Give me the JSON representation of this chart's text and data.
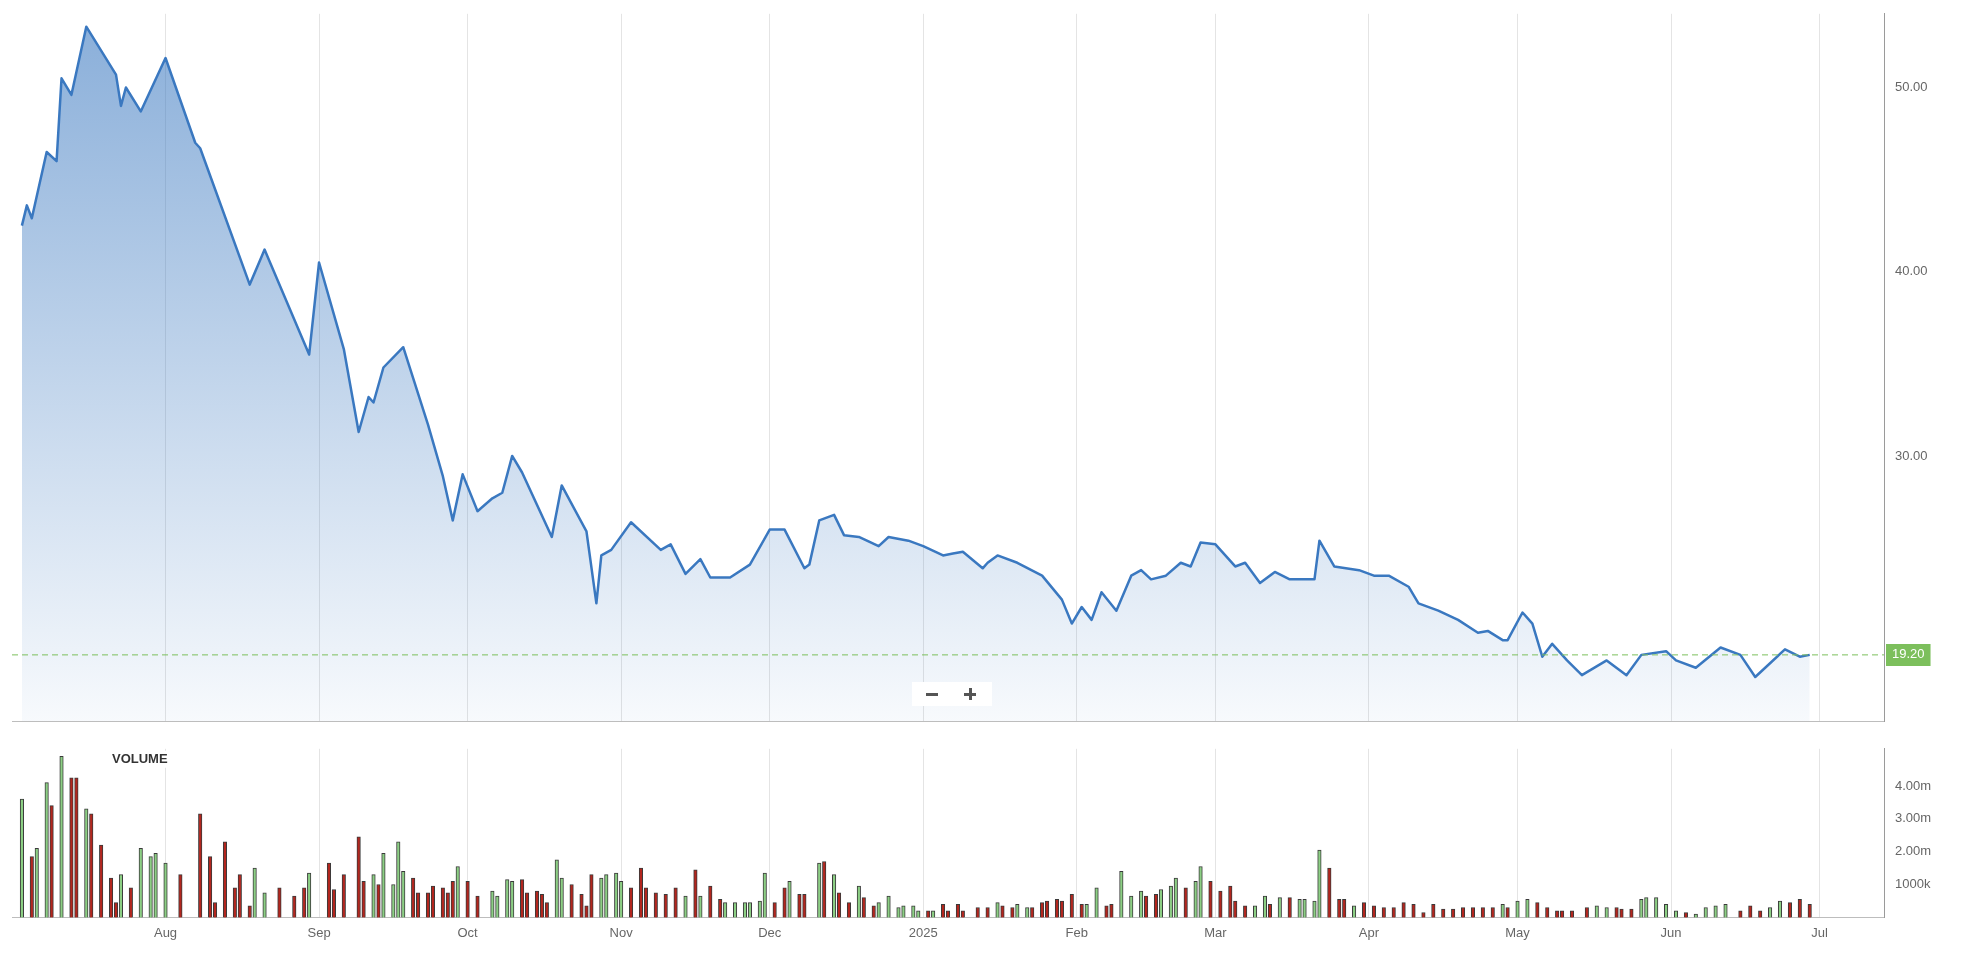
{
  "chart_data": [
    {
      "type": "area",
      "xlim": [
        "2024-07-01",
        "2025-07-14"
      ],
      "xticks": [
        {
          "value": "2024-08-01",
          "label": null
        },
        {
          "value": "2024-09-01",
          "label": null
        },
        {
          "value": "2024-10-01",
          "label": null
        },
        {
          "value": "2024-11-01",
          "label": null
        },
        {
          "value": "2024-12-01",
          "label": null
        },
        {
          "value": "2025-01-01",
          "label": null
        },
        {
          "value": "2025-02-01",
          "label": null
        },
        {
          "value": "2025-03-01",
          "label": null
        },
        {
          "value": "2025-04-01",
          "label": null
        },
        {
          "value": "2025-05-01",
          "label": null
        },
        {
          "value": "2025-06-01",
          "label": null
        },
        {
          "value": "2025-07-01",
          "label": null
        }
      ],
      "ylim": [
        15.6,
        54
      ],
      "yticks": [
        {
          "value": 30,
          "label": "30.00"
        },
        {
          "value": 40,
          "label": "40.00"
        },
        {
          "value": 50,
          "label": "50.00"
        }
      ],
      "tick_labels": "y",
      "grid": "x",
      "legend": false,
      "marker": "none",
      "ref_lines": [
        {
          "axis": "y",
          "value": 19.2,
          "label": "19.20",
          "color": "#7cbf5c",
          "line_style": "dashed"
        }
      ],
      "series": [
        {
          "color": "#3a78c0",
          "x": [
            "2024-07-03",
            "2024-07-04",
            "2024-07-05",
            "2024-07-08",
            "2024-07-10",
            "2024-07-11",
            "2024-07-13",
            "2024-07-16",
            "2024-07-22",
            "2024-07-23",
            "2024-07-24",
            "2024-07-27",
            "2024-08-01",
            "2024-08-07",
            "2024-08-08",
            "2024-08-18",
            "2024-08-21",
            "2024-08-30",
            "2024-09-01",
            "2024-09-06",
            "2024-09-09",
            "2024-09-11",
            "2024-09-12",
            "2024-09-14",
            "2024-09-18",
            "2024-09-23",
            "2024-09-26",
            "2024-09-28",
            "2024-09-30",
            "2024-10-03",
            "2024-10-06",
            "2024-10-08",
            "2024-10-10",
            "2024-10-12",
            "2024-10-18",
            "2024-10-20",
            "2024-10-25",
            "2024-10-27",
            "2024-10-28",
            "2024-10-30",
            "2024-11-03",
            "2024-11-09",
            "2024-11-11",
            "2024-11-14",
            "2024-11-17",
            "2024-11-19",
            "2024-11-23",
            "2024-11-27",
            "2024-12-01",
            "2024-12-04",
            "2024-12-08",
            "2024-12-09",
            "2024-12-11",
            "2024-12-14",
            "2024-12-16",
            "2024-12-19",
            "2024-12-23",
            "2024-12-25",
            "2024-12-29",
            "2025-01-01",
            "2025-01-05",
            "2025-01-07",
            "2025-01-09",
            "2025-01-13",
            "2025-01-14",
            "2025-01-16",
            "2025-01-20",
            "2025-01-25",
            "2025-01-29",
            "2025-01-31",
            "2025-02-02",
            "2025-02-04",
            "2025-02-06",
            "2025-02-09",
            "2025-02-12",
            "2025-02-14",
            "2025-02-16",
            "2025-02-19",
            "2025-02-22",
            "2025-02-24",
            "2025-02-26",
            "2025-03-01",
            "2025-03-05",
            "2025-03-07",
            "2025-03-10",
            "2025-03-13",
            "2025-03-16",
            "2025-03-21",
            "2025-03-22",
            "2025-03-25",
            "2025-03-30",
            "2025-04-02",
            "2025-04-05",
            "2025-04-09",
            "2025-04-11",
            "2025-04-15",
            "2025-04-19",
            "2025-04-23",
            "2025-04-25",
            "2025-04-28",
            "2025-04-29",
            "2025-05-02",
            "2025-05-04",
            "2025-05-06",
            "2025-05-08",
            "2025-05-11",
            "2025-05-14",
            "2025-05-19",
            "2025-05-23",
            "2025-05-26",
            "2025-05-31",
            "2025-06-02",
            "2025-06-06",
            "2025-06-11",
            "2025-06-15",
            "2025-06-18",
            "2025-06-24",
            "2025-06-27",
            "2025-06-29"
          ],
          "values": [
            42.5,
            43.6,
            42.9,
            46.5,
            46.0,
            50.5,
            49.6,
            53.3,
            50.7,
            49.0,
            50.0,
            48.7,
            51.6,
            47.0,
            46.7,
            39.3,
            41.2,
            35.5,
            40.5,
            35.8,
            31.3,
            33.2,
            32.9,
            34.8,
            35.9,
            31.7,
            28.9,
            26.5,
            29.0,
            27.0,
            27.7,
            28.0,
            30.0,
            29.1,
            25.6,
            28.4,
            25.9,
            22.0,
            24.6,
            24.9,
            26.4,
            24.9,
            25.2,
            23.6,
            24.4,
            23.4,
            23.4,
            24.1,
            26.0,
            26.0,
            23.9,
            24.1,
            26.5,
            26.8,
            25.7,
            25.6,
            25.1,
            25.6,
            25.4,
            25.1,
            24.6,
            24.7,
            24.8,
            23.9,
            24.2,
            24.6,
            24.2,
            23.5,
            22.2,
            20.9,
            21.8,
            21.1,
            22.6,
            21.6,
            23.5,
            23.8,
            23.3,
            23.5,
            24.2,
            24.0,
            25.3,
            25.2,
            24.0,
            24.2,
            23.1,
            23.7,
            23.3,
            23.3,
            25.4,
            24.0,
            23.8,
            23.5,
            23.5,
            22.9,
            22.0,
            21.6,
            21.1,
            20.4,
            20.5,
            20.0,
            20.0,
            21.5,
            20.9,
            19.1,
            19.8,
            18.9,
            18.1,
            18.9,
            18.1,
            19.2,
            19.4,
            18.9,
            18.5,
            19.6,
            19.2,
            18.0,
            19.5,
            19.1,
            19.2
          ]
        }
      ]
    },
    {
      "type": "bar",
      "xlim": [
        "2024-07-01",
        "2025-07-14"
      ],
      "xticks": [
        {
          "value": "2024-08-01",
          "label": "Aug"
        },
        {
          "value": "2024-09-01",
          "label": "Sep"
        },
        {
          "value": "2024-10-01",
          "label": "Oct"
        },
        {
          "value": "2024-11-01",
          "label": "Nov"
        },
        {
          "value": "2024-12-01",
          "label": "Dec"
        },
        {
          "value": "2025-01-01",
          "label": "2025"
        },
        {
          "value": "2025-02-01",
          "label": "Feb"
        },
        {
          "value": "2025-03-01",
          "label": "Mar"
        },
        {
          "value": "2025-04-01",
          "label": "Apr"
        },
        {
          "value": "2025-05-01",
          "label": "May"
        },
        {
          "value": "2025-06-01",
          "label": "Jun"
        },
        {
          "value": "2025-07-01",
          "label": "Jul"
        }
      ],
      "ylim": [
        0,
        5130000
      ],
      "yticks": [
        {
          "value": 1000000,
          "label": "1000k"
        },
        {
          "value": 2000000,
          "label": "2.00m"
        },
        {
          "value": 3000000,
          "label": "3.00m"
        },
        {
          "value": 4000000,
          "label": "4.00m"
        }
      ],
      "grid": "x",
      "legend": false,
      "annotations": [
        "VOLUME"
      ],
      "series": [
        {
          "x": [
            "2024-07-03",
            "2024-07-05",
            "2024-07-06",
            "2024-07-08",
            "2024-07-09",
            "2024-07-11",
            "2024-07-13",
            "2024-07-14",
            "2024-07-16",
            "2024-07-17",
            "2024-07-19",
            "2024-07-21",
            "2024-07-22",
            "2024-07-23",
            "2024-07-25",
            "2024-07-27",
            "2024-07-29",
            "2024-07-30",
            "2024-08-01",
            "2024-08-04",
            "2024-08-08",
            "2024-08-10",
            "2024-08-11",
            "2024-08-13",
            "2024-08-15",
            "2024-08-16",
            "2024-08-18",
            "2024-08-19",
            "2024-08-21",
            "2024-08-24",
            "2024-08-27",
            "2024-08-29",
            "2024-08-30",
            "2024-09-03",
            "2024-09-04",
            "2024-09-06",
            "2024-09-09",
            "2024-09-10",
            "2024-09-12",
            "2024-09-13",
            "2024-09-14",
            "2024-09-16",
            "2024-09-17",
            "2024-09-18",
            "2024-09-20",
            "2024-09-21",
            "2024-09-23",
            "2024-09-24",
            "2024-09-26",
            "2024-09-27",
            "2024-09-28",
            "2024-09-29",
            "2024-10-01",
            "2024-10-03",
            "2024-10-06",
            "2024-10-07",
            "2024-10-09",
            "2024-10-10",
            "2024-10-12",
            "2024-10-13",
            "2024-10-15",
            "2024-10-16",
            "2024-10-17",
            "2024-10-19",
            "2024-10-20",
            "2024-10-22",
            "2024-10-24",
            "2024-10-25",
            "2024-10-26",
            "2024-10-28",
            "2024-10-29",
            "2024-10-31",
            "2024-11-01",
            "2024-11-03",
            "2024-11-05",
            "2024-11-06",
            "2024-11-08",
            "2024-11-10",
            "2024-11-12",
            "2024-11-14",
            "2024-11-16",
            "2024-11-17",
            "2024-11-19",
            "2024-11-21",
            "2024-11-22",
            "2024-11-24",
            "2024-11-26",
            "2024-11-27",
            "2024-11-29",
            "2024-11-30",
            "2024-12-02",
            "2024-12-04",
            "2024-12-05",
            "2024-12-07",
            "2024-12-08",
            "2024-12-11",
            "2024-12-12",
            "2024-12-14",
            "2024-12-15",
            "2024-12-17",
            "2024-12-19",
            "2024-12-20",
            "2024-12-22",
            "2024-12-23",
            "2024-12-25",
            "2024-12-27",
            "2024-12-28",
            "2024-12-30",
            "2024-12-31",
            "2025-01-02",
            "2025-01-03",
            "2025-01-05",
            "2025-01-06",
            "2025-01-08",
            "2025-01-09",
            "2025-01-12",
            "2025-01-14",
            "2025-01-16",
            "2025-01-17",
            "2025-01-19",
            "2025-01-20",
            "2025-01-22",
            "2025-01-23",
            "2025-01-25",
            "2025-01-26",
            "2025-01-28",
            "2025-01-29",
            "2025-01-31",
            "2025-02-02",
            "2025-02-03",
            "2025-02-05",
            "2025-02-07",
            "2025-02-08",
            "2025-02-10",
            "2025-02-12",
            "2025-02-14",
            "2025-02-15",
            "2025-02-17",
            "2025-02-18",
            "2025-02-20",
            "2025-02-21",
            "2025-02-23",
            "2025-02-25",
            "2025-02-26",
            "2025-02-28",
            "2025-03-02",
            "2025-03-04",
            "2025-03-05",
            "2025-03-07",
            "2025-03-09",
            "2025-03-11",
            "2025-03-12",
            "2025-03-14",
            "2025-03-16",
            "2025-03-18",
            "2025-03-19",
            "2025-03-21",
            "2025-03-22",
            "2025-03-24",
            "2025-03-26",
            "2025-03-27",
            "2025-03-29",
            "2025-03-31",
            "2025-04-02",
            "2025-04-04",
            "2025-04-06",
            "2025-04-08",
            "2025-04-10",
            "2025-04-12",
            "2025-04-14",
            "2025-04-16",
            "2025-04-18",
            "2025-04-20",
            "2025-04-22",
            "2025-04-24",
            "2025-04-26",
            "2025-04-28",
            "2025-04-29",
            "2025-05-01",
            "2025-05-03",
            "2025-05-05",
            "2025-05-07",
            "2025-05-09",
            "2025-05-10",
            "2025-05-12",
            "2025-05-15",
            "2025-05-17",
            "2025-05-19",
            "2025-05-21",
            "2025-05-22",
            "2025-05-24",
            "2025-05-26",
            "2025-05-27",
            "2025-05-29",
            "2025-05-31",
            "2025-06-02",
            "2025-06-04",
            "2025-06-06",
            "2025-06-08",
            "2025-06-10",
            "2025-06-12",
            "2025-06-15",
            "2025-06-17",
            "2025-06-19",
            "2025-06-21",
            "2025-06-23",
            "2025-06-25",
            "2025-06-27",
            "2025-06-29"
          ],
          "values": [
            3600000,
            1850000,
            2100000,
            4100000,
            3400000,
            4900000,
            4250000,
            4250000,
            3300000,
            3150000,
            2200000,
            1200000,
            450000,
            1300000,
            900000,
            2100000,
            1850000,
            1950000,
            1650000,
            1300000,
            3150000,
            1850000,
            450000,
            2300000,
            900000,
            1300000,
            350000,
            1500000,
            750000,
            900000,
            650000,
            900000,
            1350000,
            1650000,
            850000,
            1300000,
            2450000,
            1100000,
            1300000,
            1000000,
            1950000,
            1000000,
            2300000,
            1400000,
            1200000,
            750000,
            750000,
            950000,
            900000,
            750000,
            1100000,
            1550000,
            1100000,
            650000,
            800000,
            650000,
            1150000,
            1100000,
            1150000,
            750000,
            800000,
            700000,
            450000,
            1750000,
            1200000,
            1000000,
            700000,
            350000,
            1300000,
            1200000,
            1300000,
            1350000,
            1100000,
            900000,
            1500000,
            900000,
            750000,
            700000,
            900000,
            650000,
            1450000,
            650000,
            950000,
            550000,
            450000,
            450000,
            450000,
            450000,
            500000,
            1350000,
            450000,
            900000,
            1100000,
            700000,
            700000,
            1650000,
            1700000,
            1300000,
            750000,
            450000,
            950000,
            600000,
            350000,
            450000,
            650000,
            300000,
            350000,
            350000,
            200000,
            200000,
            200000,
            400000,
            200000,
            400000,
            200000,
            300000,
            300000,
            450000,
            350000,
            300000,
            400000,
            300000,
            300000,
            450000,
            500000,
            550000,
            500000,
            700000,
            400000,
            400000,
            900000,
            350000,
            400000,
            1400000,
            650000,
            800000,
            650000,
            700000,
            850000,
            950000,
            1200000,
            900000,
            1100000,
            1550000,
            1100000,
            800000,
            950000,
            500000,
            350000,
            350000,
            650000,
            400000,
            600000,
            600000,
            550000,
            550000,
            500000,
            2050000,
            1500000,
            550000,
            550000,
            350000,
            450000,
            350000,
            300000,
            300000,
            450000,
            400000,
            150000,
            400000,
            250000,
            250000,
            300000,
            300000,
            300000,
            300000,
            400000,
            300000,
            500000,
            550000,
            450000,
            300000,
            200000,
            200000,
            200000,
            300000,
            350000,
            300000,
            300000,
            250000,
            250000,
            550000,
            600000,
            600000,
            400000,
            200000,
            150000,
            100000,
            300000,
            350000,
            400000,
            200000,
            350000,
            200000,
            300000,
            500000,
            450000,
            550000,
            400000
          ],
          "colors": [
            "#8ccf84",
            "#b3261e",
            "#8ccf84",
            "#8ccf84",
            "#b3261e",
            "#8ccf84",
            "#b3261e",
            "#b3261e",
            "#8ccf84",
            "#b3261e",
            "#b3261e",
            "#b3261e",
            "#b3261e",
            "#8ccf84",
            "#b3261e",
            "#8ccf84",
            "#8ccf84",
            "#8ccf84",
            "#8ccf84",
            "#b3261e",
            "#b3261e",
            "#b3261e",
            "#b3261e",
            "#b3261e",
            "#b3261e",
            "#b3261e",
            "#b3261e",
            "#8ccf84",
            "#8ccf84",
            "#b3261e",
            "#b3261e",
            "#b3261e",
            "#8ccf84",
            "#b3261e",
            "#b3261e",
            "#b3261e",
            "#b3261e",
            "#b3261e",
            "#8ccf84",
            "#b3261e",
            "#8ccf84",
            "#8ccf84",
            "#8ccf84",
            "#8ccf84",
            "#b3261e",
            "#b3261e",
            "#b3261e",
            "#b3261e",
            "#b3261e",
            "#b3261e",
            "#b3261e",
            "#8ccf84",
            "#b3261e",
            "#b3261e",
            "#8ccf84",
            "#8ccf84",
            "#8ccf84",
            "#8ccf84",
            "#b3261e",
            "#b3261e",
            "#b3261e",
            "#b3261e",
            "#b3261e",
            "#8ccf84",
            "#8ccf84",
            "#b3261e",
            "#b3261e",
            "#b3261e",
            "#b3261e",
            "#8ccf84",
            "#8ccf84",
            "#8ccf84",
            "#8ccf84",
            "#b3261e",
            "#b3261e",
            "#b3261e",
            "#b3261e",
            "#b3261e",
            "#b3261e",
            "#8ccf84",
            "#b3261e",
            "#8ccf84",
            "#b3261e",
            "#b3261e",
            "#8ccf84",
            "#8ccf84",
            "#8ccf84",
            "#8ccf84",
            "#8ccf84",
            "#8ccf84",
            "#b3261e",
            "#b3261e",
            "#8ccf84",
            "#b3261e",
            "#b3261e",
            "#8ccf84",
            "#b3261e",
            "#8ccf84",
            "#b3261e",
            "#b3261e",
            "#8ccf84",
            "#b3261e",
            "#b3261e",
            "#8ccf84",
            "#8ccf84",
            "#8ccf84",
            "#8ccf84",
            "#8ccf84",
            "#8ccf84",
            "#b3261e",
            "#8ccf84",
            "#b3261e",
            "#b3261e",
            "#b3261e",
            "#b3261e",
            "#b3261e",
            "#b3261e",
            "#8ccf84",
            "#b3261e",
            "#b3261e",
            "#8ccf84",
            "#8ccf84",
            "#b3261e",
            "#b3261e",
            "#b3261e",
            "#b3261e",
            "#b3261e",
            "#b3261e",
            "#b3261e",
            "#8ccf84",
            "#8ccf84",
            "#b3261e",
            "#b3261e",
            "#8ccf84",
            "#8ccf84",
            "#8ccf84",
            "#b3261e",
            "#b3261e",
            "#8ccf84",
            "#8ccf84",
            "#8ccf84",
            "#b3261e",
            "#8ccf84",
            "#8ccf84",
            "#b3261e",
            "#b3261e",
            "#b3261e",
            "#b3261e",
            "#b3261e",
            "#8ccf84",
            "#8ccf84",
            "#b3261e",
            "#8ccf84",
            "#b3261e",
            "#8ccf84",
            "#8ccf84",
            "#8ccf84",
            "#8ccf84",
            "#b3261e",
            "#b3261e",
            "#b3261e",
            "#8ccf84",
            "#b3261e",
            "#b3261e",
            "#b3261e",
            "#b3261e",
            "#b3261e",
            "#b3261e",
            "#b3261e",
            "#b3261e",
            "#b3261e",
            "#b3261e",
            "#b3261e",
            "#b3261e",
            "#b3261e",
            "#b3261e",
            "#8ccf84",
            "#b3261e",
            "#8ccf84",
            "#8ccf84",
            "#b3261e",
            "#b3261e",
            "#b3261e",
            "#b3261e",
            "#b3261e",
            "#b3261e",
            "#8ccf84",
            "#8ccf84",
            "#b3261e",
            "#b3261e",
            "#b3261e",
            "#8ccf84",
            "#8ccf84",
            "#8ccf84",
            "#8ccf84",
            "#8ccf84",
            "#b3261e",
            "#8ccf84",
            "#8ccf84",
            "#8ccf84",
            "#8ccf84",
            "#b3261e",
            "#b3261e",
            "#b3261e",
            "#8ccf84",
            "#8ccf84",
            "#b3261e",
            "#b3261e",
            "#b3261e"
          ]
        }
      ]
    }
  ]
}
